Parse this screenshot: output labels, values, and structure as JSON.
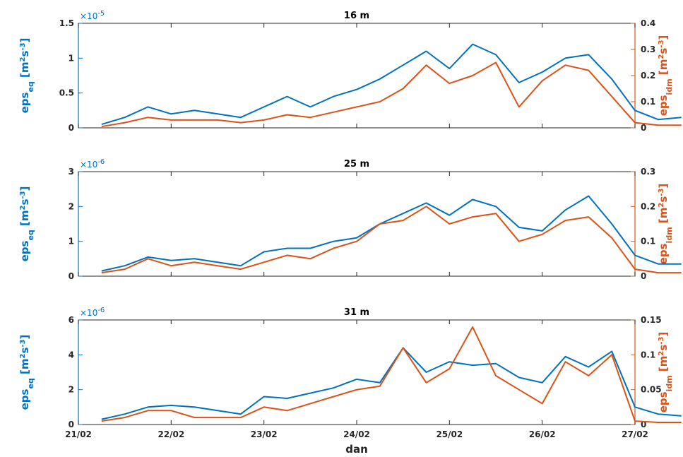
{
  "colors": {
    "left": "#0072BD",
    "right": "#D95319",
    "axis": "#262626"
  },
  "xaxis": {
    "label": "dan",
    "ticks": [
      "21/02",
      "22/02",
      "23/02",
      "24/02",
      "25/02",
      "26/02",
      "27/02"
    ],
    "range_days": [
      0,
      6
    ]
  },
  "chart_data": [
    {
      "type": "line",
      "title": "16 m",
      "ylabel_left": {
        "base": "eps",
        "sub": "eq",
        "unit": "[m",
        "sup1": "2",
        "mid": "s",
        "sup2": "-3",
        "close": "]"
      },
      "ylabel_right": {
        "base": "eps",
        "sub": "idm",
        "unit": "[m",
        "sup1": "2",
        "mid": "s",
        "sup2": "-3",
        "close": "]"
      },
      "left_exponent": {
        "base": "×10",
        "power": "-5"
      },
      "ylim_left": [
        0,
        1.5
      ],
      "yticks_left": [
        "0",
        "0.5",
        "1",
        "1.5"
      ],
      "ylim_right": [
        0,
        0.4
      ],
      "yticks_right": [
        "0",
        "0.1",
        "0.2",
        "0.3",
        "0.4"
      ],
      "x": [
        0.25,
        0.5,
        0.75,
        1.0,
        1.25,
        1.5,
        1.75,
        2.0,
        2.25,
        2.5,
        2.75,
        3.0,
        3.25,
        3.5,
        3.75,
        4.0,
        4.25,
        4.5,
        4.75,
        5.0,
        5.25,
        5.5,
        5.75,
        6.0,
        6.25,
        6.5
      ],
      "series": [
        {
          "axis": "left",
          "values": [
            0.05,
            0.15,
            0.3,
            0.2,
            0.25,
            0.2,
            0.15,
            0.3,
            0.45,
            0.3,
            0.45,
            0.55,
            0.7,
            0.9,
            1.1,
            0.85,
            1.2,
            1.05,
            0.65,
            0.8,
            1.0,
            1.05,
            0.7,
            0.25,
            0.12,
            0.15
          ]
        },
        {
          "axis": "right",
          "values": [
            0.005,
            0.02,
            0.04,
            0.03,
            0.03,
            0.03,
            0.02,
            0.03,
            0.05,
            0.04,
            0.06,
            0.08,
            0.1,
            0.15,
            0.24,
            0.17,
            0.2,
            0.25,
            0.08,
            0.18,
            0.24,
            0.22,
            0.12,
            0.02,
            0.01,
            0.01
          ]
        }
      ]
    },
    {
      "type": "line",
      "title": "25 m",
      "ylabel_left": {
        "base": "eps",
        "sub": "eq",
        "unit": "[m",
        "sup1": "2",
        "mid": "s",
        "sup2": "-3",
        "close": "]"
      },
      "ylabel_right": {
        "base": "eps",
        "sub": "idm",
        "unit": "[m",
        "sup1": "2",
        "mid": "s",
        "sup2": "-3",
        "close": "]"
      },
      "left_exponent": {
        "base": "×10",
        "power": "-6"
      },
      "ylim_left": [
        0,
        3
      ],
      "yticks_left": [
        "0",
        "1",
        "2",
        "3"
      ],
      "ylim_right": [
        0,
        0.3
      ],
      "yticks_right": [
        "0",
        "0.1",
        "0.2",
        "0.3"
      ],
      "x": [
        0.25,
        0.5,
        0.75,
        1.0,
        1.25,
        1.5,
        1.75,
        2.0,
        2.25,
        2.5,
        2.75,
        3.0,
        3.25,
        3.5,
        3.75,
        4.0,
        4.25,
        4.5,
        4.75,
        5.0,
        5.25,
        5.5,
        5.75,
        6.0,
        6.25,
        6.5
      ],
      "series": [
        {
          "axis": "left",
          "values": [
            0.15,
            0.3,
            0.55,
            0.45,
            0.5,
            0.4,
            0.3,
            0.7,
            0.8,
            0.8,
            1.0,
            1.1,
            1.5,
            1.8,
            2.1,
            1.75,
            2.2,
            2.0,
            1.4,
            1.3,
            1.9,
            2.3,
            1.5,
            0.6,
            0.35,
            0.35
          ]
        },
        {
          "axis": "right",
          "values": [
            0.01,
            0.02,
            0.05,
            0.03,
            0.04,
            0.03,
            0.02,
            0.04,
            0.06,
            0.05,
            0.08,
            0.1,
            0.15,
            0.16,
            0.2,
            0.15,
            0.17,
            0.18,
            0.1,
            0.12,
            0.16,
            0.17,
            0.11,
            0.02,
            0.01,
            0.01
          ]
        }
      ]
    },
    {
      "type": "line",
      "title": "31 m",
      "ylabel_left": {
        "base": "eps",
        "sub": "eq",
        "unit": "[m",
        "sup1": "2",
        "mid": "s",
        "sup2": "-3",
        "close": "]"
      },
      "ylabel_right": {
        "base": "eps",
        "sub": "idm",
        "unit": "[m",
        "sup1": "2",
        "mid": "s",
        "sup2": "-3",
        "close": "]"
      },
      "left_exponent": {
        "base": "×10",
        "power": "-6"
      },
      "ylim_left": [
        0,
        6
      ],
      "yticks_left": [
        "0",
        "2",
        "4",
        "6"
      ],
      "ylim_right": [
        0,
        0.15
      ],
      "yticks_right": [
        "0",
        "0.05",
        "0.1",
        "0.15"
      ],
      "x": [
        0.25,
        0.5,
        0.75,
        1.0,
        1.25,
        1.5,
        1.75,
        2.0,
        2.25,
        2.5,
        2.75,
        3.0,
        3.25,
        3.5,
        3.75,
        4.0,
        4.25,
        4.5,
        4.75,
        5.0,
        5.25,
        5.5,
        5.75,
        6.0,
        6.25,
        6.5
      ],
      "series": [
        {
          "axis": "left",
          "values": [
            0.3,
            0.6,
            1.0,
            1.1,
            1.0,
            0.8,
            0.6,
            1.6,
            1.5,
            1.8,
            2.1,
            2.6,
            2.4,
            4.4,
            3.0,
            3.6,
            3.4,
            3.5,
            2.7,
            2.4,
            3.9,
            3.3,
            4.2,
            1.0,
            0.6,
            0.5
          ]
        },
        {
          "axis": "right",
          "values": [
            0.005,
            0.01,
            0.02,
            0.02,
            0.01,
            0.01,
            0.01,
            0.025,
            0.02,
            0.03,
            0.04,
            0.05,
            0.055,
            0.11,
            0.06,
            0.08,
            0.14,
            0.07,
            0.05,
            0.03,
            0.09,
            0.07,
            0.1,
            0.005,
            0.003,
            0.003
          ]
        }
      ]
    }
  ]
}
